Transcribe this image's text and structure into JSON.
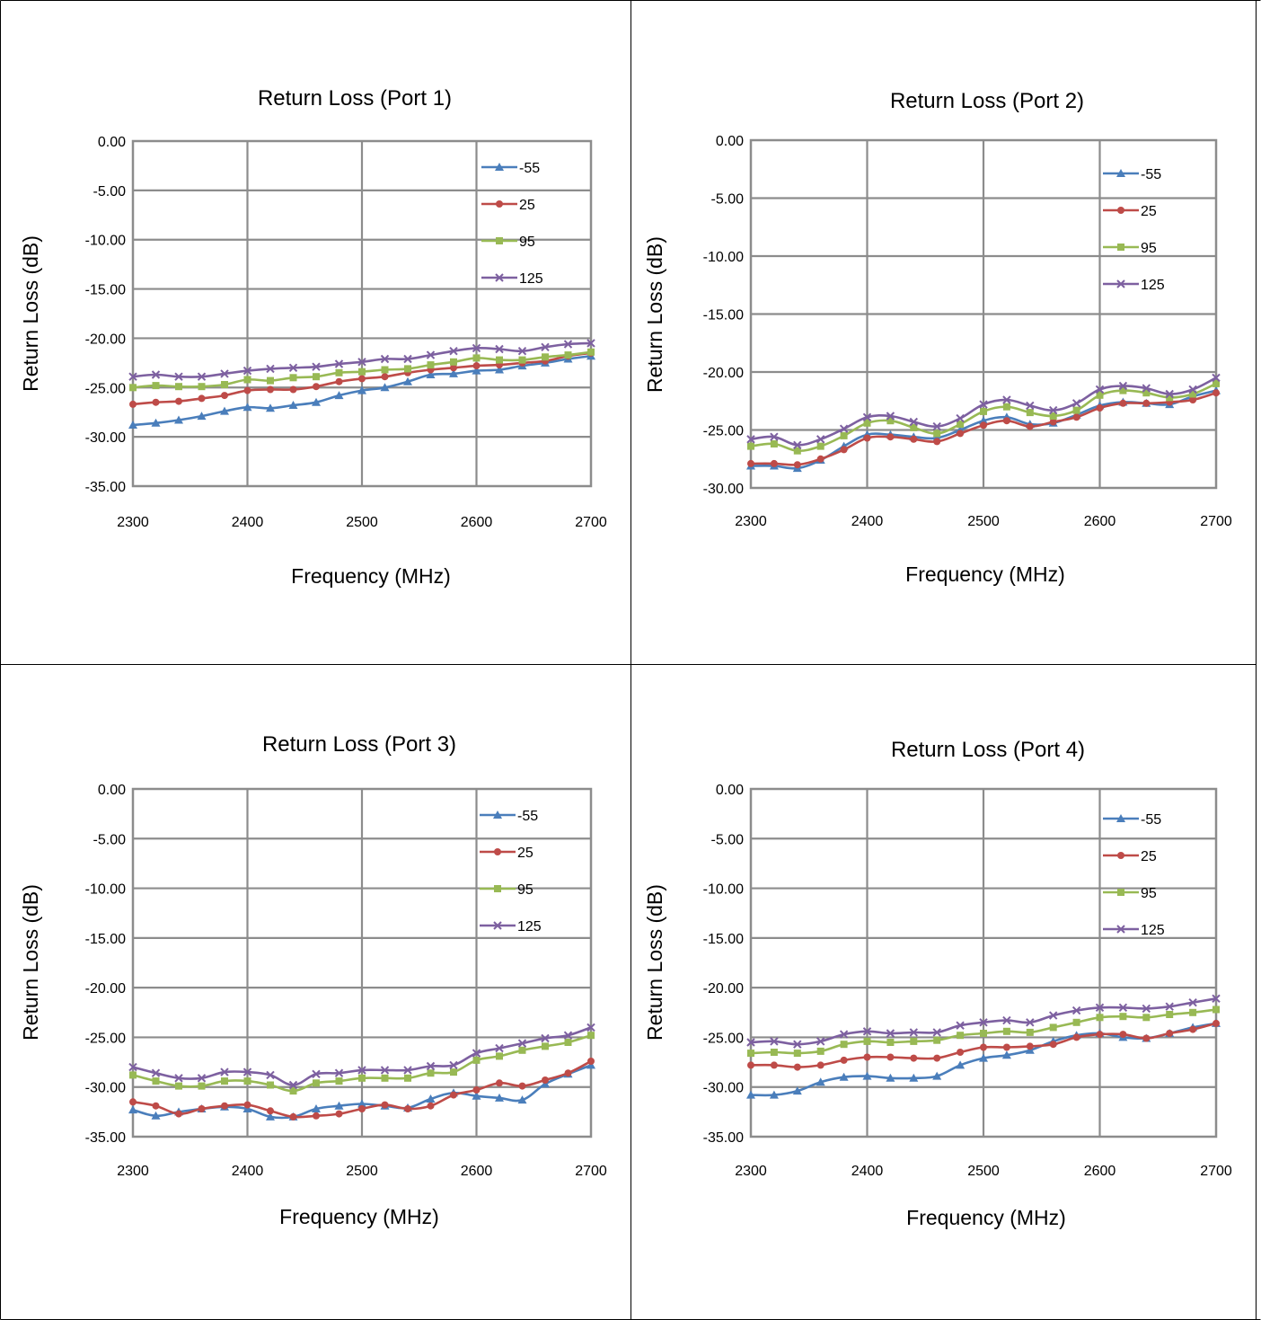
{
  "chart_data": [
    {
      "type": "line",
      "title": "Return Loss (Port 1)",
      "xlabel": "Frequency (MHz)",
      "ylabel": "Return Loss (dB)",
      "xlim": [
        2300,
        2700
      ],
      "ylim": [
        -35,
        0
      ],
      "x_ticks": [
        "2300",
        "2400",
        "2500",
        "2600",
        "2700"
      ],
      "y_ticks": [
        "0.00",
        "-5.00",
        "-10.00",
        "-15.00",
        "-20.00",
        "-25.00",
        "-30.00",
        "-35.00"
      ],
      "grid": true,
      "legend_position": "top-right",
      "x": [
        2300,
        2320,
        2340,
        2360,
        2380,
        2400,
        2420,
        2440,
        2460,
        2480,
        2500,
        2520,
        2540,
        2560,
        2580,
        2600,
        2620,
        2640,
        2660,
        2680,
        2700
      ],
      "series": [
        {
          "name": "-55",
          "color": "#4a7ebb",
          "marker": "triangle",
          "values": [
            -28.8,
            -28.6,
            -28.3,
            -27.9,
            -27.4,
            -27.0,
            -27.1,
            -26.8,
            -26.5,
            -25.8,
            -25.3,
            -25.0,
            -24.4,
            -23.7,
            -23.6,
            -23.3,
            -23.2,
            -22.8,
            -22.5,
            -22.1,
            -21.8
          ]
        },
        {
          "name": "25",
          "color": "#be4b48",
          "marker": "circle",
          "values": [
            -26.7,
            -26.5,
            -26.4,
            -26.1,
            -25.8,
            -25.3,
            -25.2,
            -25.2,
            -24.9,
            -24.4,
            -24.1,
            -23.9,
            -23.5,
            -23.2,
            -23.0,
            -22.8,
            -22.7,
            -22.5,
            -22.3,
            -21.8,
            -21.5
          ]
        },
        {
          "name": "95",
          "color": "#98b954",
          "marker": "square",
          "values": [
            -25.0,
            -24.8,
            -24.9,
            -24.9,
            -24.7,
            -24.2,
            -24.3,
            -24.0,
            -23.9,
            -23.5,
            -23.4,
            -23.2,
            -23.1,
            -22.7,
            -22.4,
            -22.0,
            -22.2,
            -22.2,
            -21.9,
            -21.7,
            -21.4
          ]
        },
        {
          "name": "125",
          "color": "#7d60a0",
          "marker": "x",
          "values": [
            -23.9,
            -23.7,
            -23.9,
            -23.9,
            -23.6,
            -23.3,
            -23.1,
            -23.0,
            -22.9,
            -22.6,
            -22.4,
            -22.1,
            -22.1,
            -21.7,
            -21.3,
            -21.0,
            -21.1,
            -21.3,
            -20.9,
            -20.6,
            -20.5
          ]
        }
      ]
    },
    {
      "type": "line",
      "title": "Return Loss (Port 2)",
      "xlabel": "Frequency (MHz)",
      "ylabel": "Return Loss (dB)",
      "xlim": [
        2300,
        2700
      ],
      "ylim": [
        -30,
        0
      ],
      "x_ticks": [
        "2300",
        "2400",
        "2500",
        "2600",
        "2700"
      ],
      "y_ticks": [
        "0.00",
        "-5.00",
        "-10.00",
        "-15.00",
        "-20.00",
        "-25.00",
        "-30.00"
      ],
      "grid": true,
      "legend_position": "top-right",
      "x": [
        2300,
        2320,
        2340,
        2360,
        2380,
        2400,
        2420,
        2440,
        2460,
        2480,
        2500,
        2520,
        2540,
        2560,
        2580,
        2600,
        2620,
        2640,
        2660,
        2680,
        2700
      ],
      "series": [
        {
          "name": "-55",
          "color": "#4a7ebb",
          "marker": "triangle",
          "values": [
            -28.1,
            -28.1,
            -28.3,
            -27.6,
            -26.4,
            -25.4,
            -25.4,
            -25.6,
            -25.7,
            -25.0,
            -24.2,
            -23.9,
            -24.5,
            -24.4,
            -23.7,
            -22.9,
            -22.6,
            -22.7,
            -22.8,
            -22.1,
            -21.6
          ]
        },
        {
          "name": "25",
          "color": "#be4b48",
          "marker": "circle",
          "values": [
            -27.9,
            -27.9,
            -28.0,
            -27.5,
            -26.7,
            -25.7,
            -25.6,
            -25.8,
            -26.0,
            -25.3,
            -24.6,
            -24.2,
            -24.7,
            -24.3,
            -23.9,
            -23.1,
            -22.7,
            -22.7,
            -22.6,
            -22.4,
            -21.8
          ]
        },
        {
          "name": "95",
          "color": "#98b954",
          "marker": "square",
          "values": [
            -26.4,
            -26.2,
            -26.8,
            -26.4,
            -25.5,
            -24.4,
            -24.2,
            -24.8,
            -25.3,
            -24.5,
            -23.4,
            -23.0,
            -23.5,
            -23.8,
            -23.3,
            -22.0,
            -21.6,
            -21.8,
            -22.2,
            -21.9,
            -21.0
          ]
        },
        {
          "name": "125",
          "color": "#7d60a0",
          "marker": "x",
          "values": [
            -25.8,
            -25.6,
            -26.3,
            -25.8,
            -24.9,
            -23.9,
            -23.8,
            -24.3,
            -24.7,
            -24.0,
            -22.8,
            -22.4,
            -22.9,
            -23.3,
            -22.7,
            -21.5,
            -21.2,
            -21.4,
            -21.9,
            -21.5,
            -20.5
          ]
        }
      ]
    },
    {
      "type": "line",
      "title": "Return Loss (Port 3)",
      "xlabel": "Frequency (MHz)",
      "ylabel": "Return Loss (dB)",
      "xlim": [
        2300,
        2700
      ],
      "ylim": [
        -35,
        0
      ],
      "x_ticks": [
        "2300",
        "2400",
        "2500",
        "2600",
        "2700"
      ],
      "y_ticks": [
        "0.00",
        "-5.00",
        "-10.00",
        "-15.00",
        "-20.00",
        "-25.00",
        "-30.00",
        "-35.00"
      ],
      "grid": true,
      "legend_position": "top-right",
      "x": [
        2300,
        2320,
        2340,
        2360,
        2380,
        2400,
        2420,
        2440,
        2460,
        2480,
        2500,
        2520,
        2540,
        2560,
        2580,
        2600,
        2620,
        2640,
        2660,
        2680,
        2700
      ],
      "series": [
        {
          "name": "-55",
          "color": "#4a7ebb",
          "marker": "triangle",
          "values": [
            -32.3,
            -32.9,
            -32.5,
            -32.2,
            -32.0,
            -32.2,
            -33.0,
            -33.0,
            -32.2,
            -31.9,
            -31.7,
            -31.9,
            -32.1,
            -31.2,
            -30.6,
            -30.9,
            -31.1,
            -31.3,
            -29.7,
            -28.7,
            -27.8
          ]
        },
        {
          "name": "25",
          "color": "#be4b48",
          "marker": "circle",
          "values": [
            -31.5,
            -31.9,
            -32.7,
            -32.2,
            -31.9,
            -31.8,
            -32.4,
            -33.0,
            -32.9,
            -32.7,
            -32.2,
            -31.8,
            -32.2,
            -31.9,
            -30.8,
            -30.3,
            -29.6,
            -29.9,
            -29.3,
            -28.6,
            -27.4
          ]
        },
        {
          "name": "95",
          "color": "#98b954",
          "marker": "square",
          "values": [
            -28.8,
            -29.4,
            -29.9,
            -29.9,
            -29.4,
            -29.4,
            -29.8,
            -30.4,
            -29.6,
            -29.4,
            -29.1,
            -29.1,
            -29.1,
            -28.6,
            -28.5,
            -27.3,
            -26.9,
            -26.3,
            -25.9,
            -25.5,
            -24.8
          ]
        },
        {
          "name": "125",
          "color": "#7d60a0",
          "marker": "x",
          "values": [
            -28.0,
            -28.6,
            -29.1,
            -29.1,
            -28.5,
            -28.5,
            -28.8,
            -29.8,
            -28.7,
            -28.6,
            -28.3,
            -28.3,
            -28.3,
            -27.9,
            -27.8,
            -26.6,
            -26.1,
            -25.6,
            -25.1,
            -24.8,
            -24.0
          ]
        }
      ]
    },
    {
      "type": "line",
      "title": "Return Loss (Port 4)",
      "xlabel": "Frequency (MHz)",
      "ylabel": "Return Loss (dB)",
      "xlim": [
        2300,
        2700
      ],
      "ylim": [
        -35,
        0
      ],
      "x_ticks": [
        "2300",
        "2400",
        "2500",
        "2600",
        "2700"
      ],
      "y_ticks": [
        "0.00",
        "-5.00",
        "-10.00",
        "-15.00",
        "-20.00",
        "-25.00",
        "-30.00",
        "-35.00"
      ],
      "grid": true,
      "legend_position": "top-right",
      "x": [
        2300,
        2320,
        2340,
        2360,
        2380,
        2400,
        2420,
        2440,
        2460,
        2480,
        2500,
        2520,
        2540,
        2560,
        2580,
        2600,
        2620,
        2640,
        2660,
        2680,
        2700
      ],
      "series": [
        {
          "name": "-55",
          "color": "#4a7ebb",
          "marker": "triangle",
          "values": [
            -30.8,
            -30.8,
            -30.4,
            -29.5,
            -29.0,
            -28.9,
            -29.1,
            -29.1,
            -28.9,
            -27.8,
            -27.1,
            -26.8,
            -26.3,
            -25.4,
            -24.8,
            -24.6,
            -25.0,
            -25.1,
            -24.6,
            -24.0,
            -23.6
          ]
        },
        {
          "name": "25",
          "color": "#be4b48",
          "marker": "circle",
          "values": [
            -27.8,
            -27.8,
            -28.0,
            -27.8,
            -27.3,
            -27.0,
            -27.0,
            -27.1,
            -27.1,
            -26.5,
            -26.0,
            -26.0,
            -25.9,
            -25.7,
            -25.0,
            -24.7,
            -24.7,
            -25.1,
            -24.6,
            -24.2,
            -23.6
          ]
        },
        {
          "name": "95",
          "color": "#98b954",
          "marker": "square",
          "values": [
            -26.6,
            -26.5,
            -26.6,
            -26.4,
            -25.7,
            -25.4,
            -25.5,
            -25.4,
            -25.3,
            -24.8,
            -24.6,
            -24.4,
            -24.5,
            -24.0,
            -23.5,
            -23.0,
            -22.9,
            -23.0,
            -22.7,
            -22.5,
            -22.2
          ]
        },
        {
          "name": "125",
          "color": "#7d60a0",
          "marker": "x",
          "values": [
            -25.5,
            -25.4,
            -25.7,
            -25.4,
            -24.7,
            -24.4,
            -24.6,
            -24.5,
            -24.5,
            -23.8,
            -23.5,
            -23.3,
            -23.5,
            -22.8,
            -22.3,
            -22.0,
            -22.0,
            -22.1,
            -21.9,
            -21.5,
            -21.1
          ]
        }
      ]
    }
  ]
}
